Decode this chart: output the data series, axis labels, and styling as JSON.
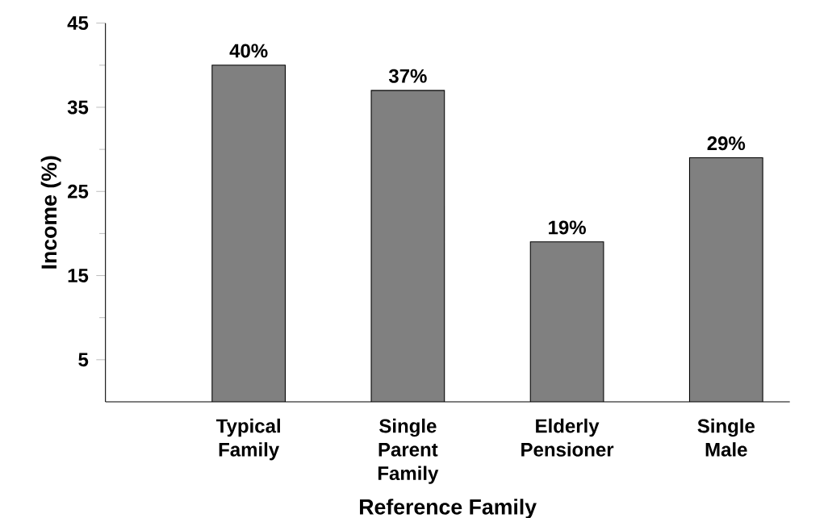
{
  "chart_data": {
    "type": "bar",
    "xlabel": "Reference Family",
    "ylabel": "Income (%)",
    "categories": [
      "Typical Family",
      "Single Parent Family",
      "Elderly Pensioner",
      "Single Male"
    ],
    "values": [
      40,
      37,
      19,
      29
    ],
    "value_labels": [
      "40%",
      "37%",
      "19%",
      "29%"
    ],
    "color": "#808080",
    "ylim": [
      0,
      45
    ],
    "yticks": [
      5,
      15,
      25,
      35,
      45
    ],
    "grid": false,
    "legend": false
  }
}
